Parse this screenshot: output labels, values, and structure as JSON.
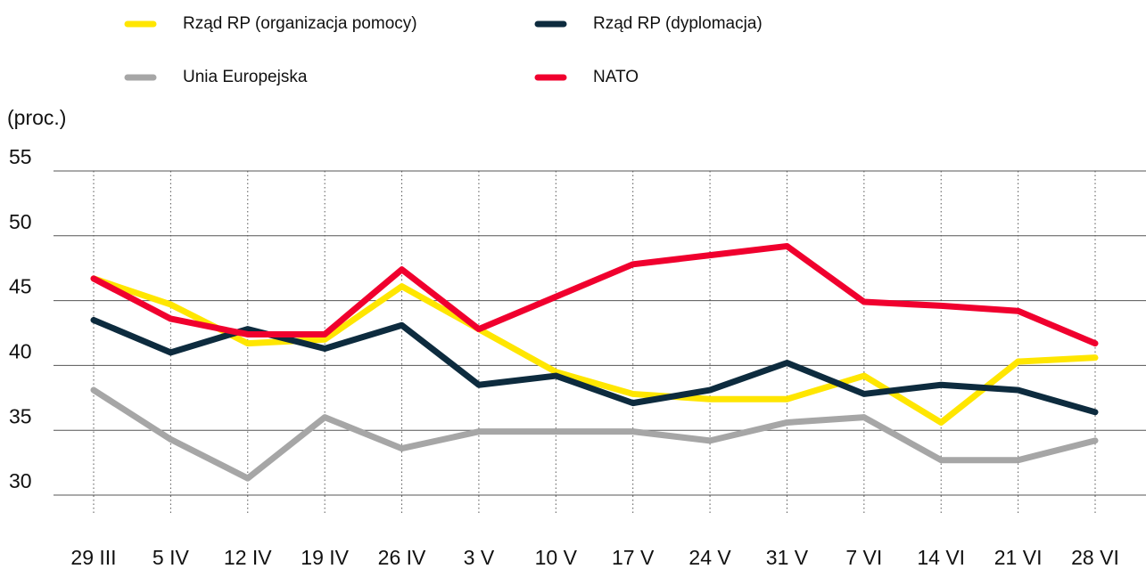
{
  "chart_data": {
    "type": "line",
    "y_label": "(proc.)",
    "categories": [
      "29 III",
      "5 IV",
      "12 IV",
      "19 IV",
      "26 IV",
      "3 V",
      "10 V",
      "17 V",
      "24 V",
      "31 V",
      "7 VI",
      "14 VI",
      "21 VI",
      "28 VI"
    ],
    "series": [
      {
        "name": "Rząd RP (organizacja pomocy)",
        "color": "#ffe600",
        "values": [
          46.7,
          44.7,
          41.7,
          42.0,
          46.1,
          42.8,
          39.5,
          37.8,
          37.4,
          37.4,
          39.2,
          35.6,
          40.3,
          40.6
        ]
      },
      {
        "name": "Rząd RP (dyplomacja)",
        "color": "#0d2b3e",
        "values": [
          43.5,
          41.0,
          42.8,
          41.3,
          43.1,
          38.5,
          39.2,
          37.1,
          38.1,
          40.2,
          37.8,
          38.5,
          38.1,
          36.4
        ]
      },
      {
        "name": "Unia Europejska",
        "color": "#a6a6a6",
        "values": [
          38.1,
          34.3,
          31.3,
          36.0,
          33.6,
          34.9,
          34.9,
          34.9,
          34.2,
          35.6,
          36.0,
          32.7,
          32.7,
          34.2
        ]
      },
      {
        "name": "NATO",
        "color": "#f0002e",
        "values": [
          46.7,
          43.6,
          42.4,
          42.4,
          47.4,
          42.8,
          45.3,
          47.8,
          48.5,
          49.2,
          44.9,
          44.6,
          44.2,
          41.7
        ]
      }
    ],
    "ylim": [
      30,
      55
    ],
    "yticks": [
      30,
      35,
      40,
      45,
      50,
      55
    ],
    "grid": true,
    "draw_order": [
      2,
      0,
      1,
      3
    ]
  }
}
